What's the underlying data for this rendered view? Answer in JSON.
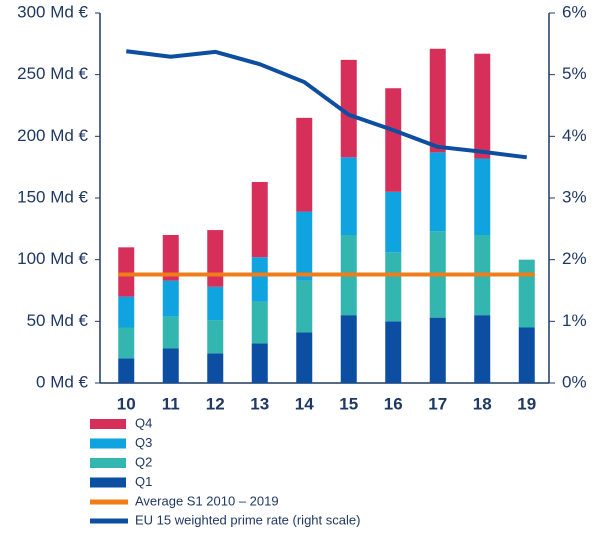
{
  "chart_data": {
    "type": "bar",
    "categories": [
      "10",
      "11",
      "12",
      "13",
      "14",
      "15",
      "16",
      "17",
      "18",
      "19"
    ],
    "stacked": true,
    "series": [
      {
        "name": "Q1",
        "color": "#0b4ea2",
        "values": [
          20,
          28,
          24,
          32,
          41,
          55,
          50,
          53,
          55,
          45
        ]
      },
      {
        "name": "Q2",
        "color": "#33b5b0",
        "values": [
          25,
          26,
          27,
          34,
          42,
          65,
          56,
          70,
          65,
          55
        ]
      },
      {
        "name": "Q3",
        "color": "#0fa3e0",
        "values": [
          25,
          29,
          27,
          36,
          56,
          63,
          49,
          64,
          62,
          null
        ]
      },
      {
        "name": "Q4",
        "color": "#d6305a",
        "values": [
          40,
          37,
          46,
          61,
          76,
          79,
          84,
          84,
          85,
          null
        ]
      }
    ],
    "average": {
      "name": "Average S1 2010 – 2019",
      "color": "#ee7d1a",
      "value": 88
    },
    "line": {
      "name": "EU 15 weighted prime rate (right scale)",
      "color": "#0d4ea0",
      "axis": "y2",
      "values": [
        5.38,
        5.29,
        5.37,
        5.17,
        4.88,
        4.35,
        4.1,
        3.83,
        3.75,
        3.66
      ]
    },
    "ylim": [
      0,
      300
    ],
    "yticks": [
      {
        "value": 0,
        "label": "0 Md €"
      },
      {
        "value": 50,
        "label": "50 Md €"
      },
      {
        "value": 100,
        "label": "100 Md €"
      },
      {
        "value": 150,
        "label": "150 Md €"
      },
      {
        "value": 200,
        "label": "200 Md €"
      },
      {
        "value": 250,
        "label": "250 Md €"
      },
      {
        "value": 300,
        "label": "300 Md €"
      }
    ],
    "y2lim": [
      0,
      6
    ],
    "y2ticks": [
      {
        "value": 0,
        "label": "0%"
      },
      {
        "value": 1,
        "label": "1%"
      },
      {
        "value": 2,
        "label": "2%"
      },
      {
        "value": 3,
        "label": "3%"
      },
      {
        "value": 4,
        "label": "4%"
      },
      {
        "value": 5,
        "label": "5%"
      },
      {
        "value": 6,
        "label": "6%"
      }
    ],
    "legend": "bottom-left"
  }
}
